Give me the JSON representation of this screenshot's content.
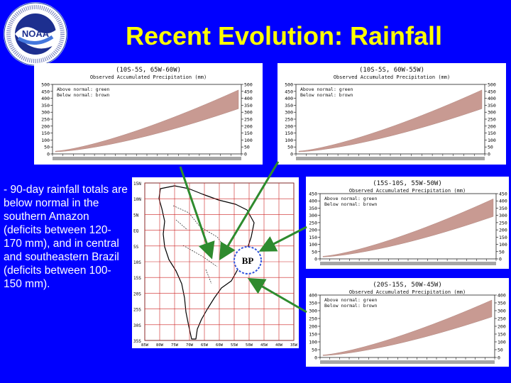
{
  "slide": {
    "title": "Recent Evolution: Rainfall",
    "bullet": "- 90-day rainfall totals are below normal in the southern Amazon (deficits between 120-170 mm), and in central and southeastern Brazil (deficits between 100-150 mm).",
    "logo": {
      "ring_text": "NATIONAL OCEANIC AND ATMOSPHERIC ADMINISTRATION · U.S. DEPARTMENT OF COMMERCE",
      "center_text": "NOAA",
      "icon": "noaa-logo-icon"
    },
    "map_marker": "BP"
  },
  "colors": {
    "background": "#0000ff",
    "title": "#ffff00",
    "deficit_fill": "#c89a92",
    "arrow": "#2e8b2e",
    "grid": "#cc2222",
    "marker_ring": "#3355dd"
  },
  "chart_data": [
    {
      "type": "area",
      "region": "(10S-5S, 65W-60W)",
      "title": "Observed Accumulated Precipitation (mm)",
      "legend": [
        "Above normal: green",
        "Below normal: brown"
      ],
      "ylim": [
        0,
        500
      ],
      "yticks": [
        0,
        50,
        100,
        150,
        200,
        250,
        300,
        350,
        400,
        450,
        500
      ],
      "deficit": "below normal (brown)"
    },
    {
      "type": "area",
      "region": "(10S-5S, 60W-55W)",
      "title": "Observed Accumulated Precipitation (mm)",
      "legend": [
        "Above normal: green",
        "Below normal: brown"
      ],
      "ylim": [
        0,
        500
      ],
      "yticks": [
        0,
        50,
        100,
        150,
        200,
        250,
        300,
        350,
        400,
        450,
        500
      ],
      "deficit": "below normal (brown)"
    },
    {
      "type": "area",
      "region": "(15S-10S, 55W-50W)",
      "title": "Observed Accumulated Precipitation (mm)",
      "legend": [
        "Above normal: green",
        "Below normal: brown"
      ],
      "ylim": [
        0,
        450
      ],
      "yticks": [
        0,
        50,
        100,
        150,
        200,
        250,
        300,
        350,
        400,
        450
      ],
      "deficit": "below normal (brown)"
    },
    {
      "type": "area",
      "region": "(20S-15S, 50W-45W)",
      "title": "Observed Accumulated Precipitation (mm)",
      "legend": [
        "Above normal: green",
        "Below normal: brown"
      ],
      "ylim": [
        0,
        400
      ],
      "yticks": [
        0,
        50,
        100,
        150,
        200,
        250,
        300,
        350,
        400
      ],
      "deficit": "below normal (brown)"
    }
  ],
  "map": {
    "lat_labels": [
      "15N",
      "10N",
      "5N",
      "EQ",
      "5S",
      "10S",
      "15S",
      "20S",
      "25S",
      "30S",
      "35S"
    ],
    "lon_labels": [
      "85W",
      "80W",
      "75W",
      "70W",
      "65W",
      "60W",
      "55W",
      "50W",
      "45W",
      "40W",
      "35W"
    ]
  }
}
